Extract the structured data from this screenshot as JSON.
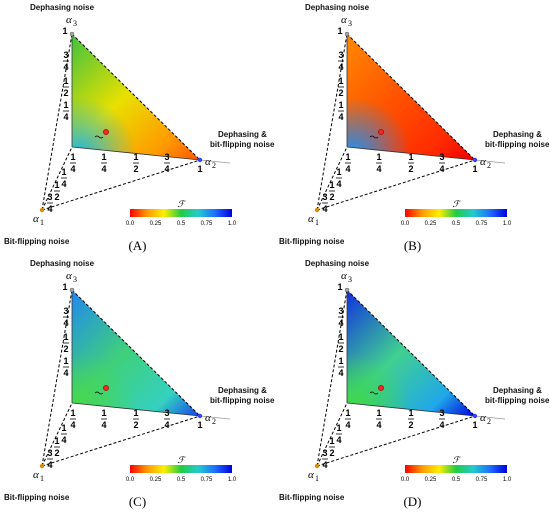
{
  "labels": {
    "alpha3_vertex": "Dephasing noise",
    "alpha2_vertex_line1": "Dephasing &",
    "alpha2_vertex_line2": "bit-flipping noise",
    "alpha1_vertex": "Bit-flipping noise",
    "alpha_symbol": "α",
    "alpha_subs": [
      "1",
      "2",
      "3"
    ],
    "one": "1"
  },
  "axis_ticks": {
    "top_axis": [
      "3",
      "1",
      "1"
    ],
    "top_axis_denoms": [
      "4",
      "2",
      "4"
    ],
    "bottom_axis": [
      "1",
      "1",
      "1",
      "3",
      "1"
    ],
    "bottom_axis_denoms": [
      "4",
      "4",
      "2",
      "4"
    ],
    "left_axis": [
      "1",
      "1",
      "3"
    ],
    "left_axis_denoms": [
      "4",
      "2",
      "4"
    ]
  },
  "colorbar": {
    "title": "ℱ",
    "ticks": [
      "0.0",
      "0.25",
      "0.5",
      "0.75",
      "1.0"
    ],
    "stops": [
      "#ff0000",
      "#ff9900",
      "#ffee00",
      "#22cc44",
      "#22cccc",
      "#1f6fff",
      "#0000dd"
    ]
  },
  "panels": [
    {
      "id": "A",
      "caption": "(A)",
      "colors": {
        "top": "#3fc23f",
        "mid": "#e8e000",
        "edge": "#ff9a00",
        "corner": "#ff5500",
        "lowleft": "#1fb4e0"
      }
    },
    {
      "id": "B",
      "caption": "(B)",
      "colors": {
        "top": "#ff8a00",
        "mid": "#ff5200",
        "edge": "#ff2a00",
        "corner": "#ee0000",
        "lowleft": "#1f8ff0"
      }
    },
    {
      "id": "C",
      "caption": "(C)",
      "colors": {
        "top": "#1f88f0",
        "mid": "#3fd07a",
        "edge": "#35d0c0",
        "corner": "#1040f0",
        "lowleft": "#48d84a"
      }
    },
    {
      "id": "D",
      "caption": "(D)",
      "colors": {
        "top": "#1030e0",
        "mid": "#40d090",
        "edge": "#20a8e8",
        "corner": "#0000e0",
        "lowleft": "#3ed844"
      }
    }
  ]
}
